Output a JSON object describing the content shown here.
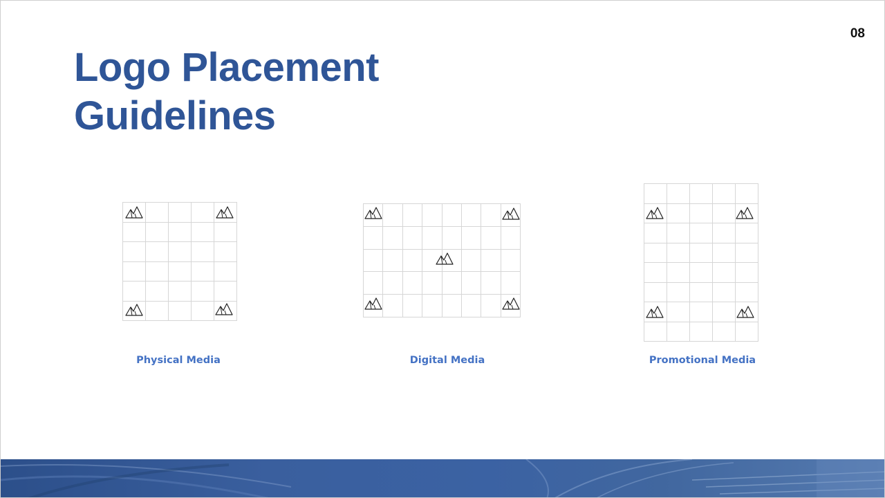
{
  "slide": {
    "page_number": "08",
    "title_line1": "Logo Placement",
    "title_line2": "Guidelines"
  },
  "panels": [
    {
      "caption": "Physical Media",
      "grid_cols": 5,
      "grid_rows": 6,
      "logo_icon": "mountain-logo-icon",
      "logo_positions": [
        "top-left",
        "top-right",
        "bottom-left",
        "bottom-right"
      ]
    },
    {
      "caption": "Digital Media",
      "grid_cols": 8,
      "grid_rows": 5,
      "logo_icon": "mountain-logo-icon",
      "logo_positions": [
        "top-left",
        "top-right",
        "center",
        "bottom-left",
        "bottom-right"
      ]
    },
    {
      "caption": "Promotional Media",
      "grid_cols": 5,
      "grid_rows": 8,
      "logo_icon": "mountain-logo-icon",
      "logo_positions": [
        "top-left",
        "top-right",
        "bottom-left",
        "bottom-right"
      ]
    }
  ],
  "colors": {
    "title": "#2f5597",
    "caption": "#4472c4",
    "grid_line": "#d6d6d6",
    "footer_band": "#3b62a3"
  }
}
